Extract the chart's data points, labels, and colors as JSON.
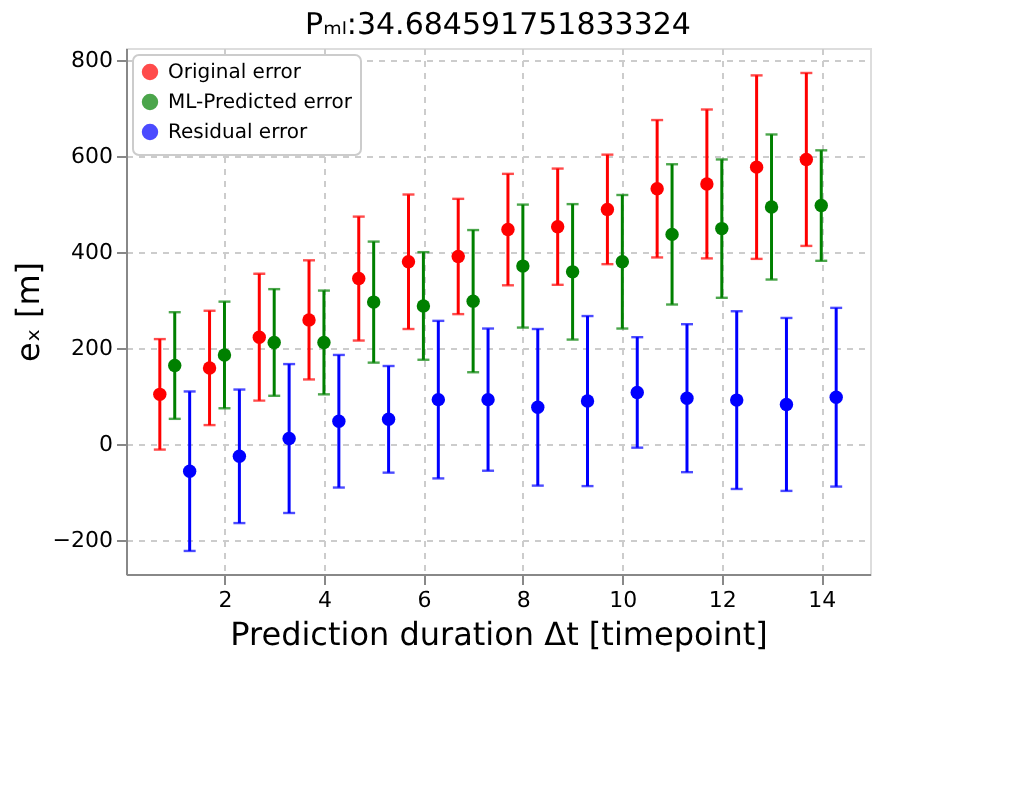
{
  "chart_data": {
    "type": "scatter",
    "title": "Pₘₗ:34.684591751833324",
    "xlabel": "Prediction duration Δt [timepoint]",
    "ylabel": "eₓ [m]",
    "xlim": [
      0.02,
      14.98
    ],
    "xticks": [
      2,
      4,
      6,
      8,
      10,
      12,
      14
    ],
    "ylim": [
      -271,
      824
    ],
    "yticks": [
      -200,
      0,
      200,
      400,
      600,
      800
    ],
    "grid": true,
    "legend": "top left",
    "marker": "circle",
    "series": [
      {
        "name": "Original error",
        "color": "#ff0000",
        "x": [
          0.7,
          1.7,
          2.7,
          3.7,
          4.7,
          5.7,
          6.7,
          7.7,
          8.7,
          9.7,
          10.7,
          11.7,
          12.7,
          13.7
        ],
        "values": [
          103,
          158,
          222,
          258,
          344,
          379,
          390,
          446,
          452,
          488,
          531,
          541,
          576,
          592
        ],
        "errors": [
          115,
          119,
          132,
          124,
          129,
          140,
          120,
          116,
          121,
          114,
          143,
          155,
          191,
          180
        ]
      },
      {
        "name": "ML-Predicted error",
        "color": "#008000",
        "x": [
          1,
          2,
          3,
          4,
          5,
          6,
          7,
          8,
          9,
          10,
          11,
          12,
          13,
          14
        ],
        "values": [
          163,
          185,
          211,
          211,
          295,
          287,
          297,
          370,
          358,
          379,
          436,
          448,
          493,
          496
        ],
        "errors": [
          111,
          111,
          111,
          108,
          126,
          112,
          148,
          128,
          141,
          139,
          146,
          144,
          151,
          115
        ]
      },
      {
        "name": "Residual error",
        "color": "#0000ff",
        "x": [
          1.3,
          2.3,
          3.3,
          4.3,
          5.3,
          6.3,
          7.3,
          8.3,
          9.3,
          10.3,
          11.3,
          12.3,
          13.3,
          14.3
        ],
        "values": [
          -57,
          -26,
          11,
          47,
          51,
          92,
          92,
          76,
          89,
          107,
          95,
          91,
          82,
          97
        ],
        "errors": [
          166,
          139,
          155,
          138,
          111,
          164,
          148,
          163,
          177,
          115,
          154,
          185,
          180,
          186
        ]
      }
    ]
  }
}
